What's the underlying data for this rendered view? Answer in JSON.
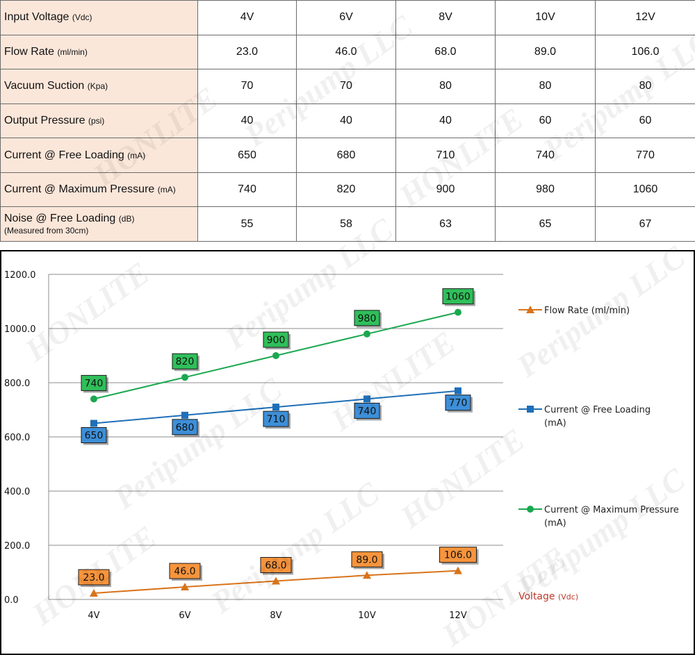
{
  "table": {
    "header": {
      "label": "Input Voltage",
      "unit": "(Vdc)",
      "values": [
        "4V",
        "6V",
        "8V",
        "10V",
        "12V"
      ]
    },
    "rows": [
      {
        "label": "Flow Rate",
        "unit": "(ml/min)",
        "values": [
          "23.0",
          "46.0",
          "68.0",
          "89.0",
          "106.0"
        ]
      },
      {
        "label": "Vacuum Suction",
        "unit": "(Kpa)",
        "values": [
          "70",
          "70",
          "80",
          "80",
          "80"
        ]
      },
      {
        "label": "Output Pressure",
        "unit": "(psi)",
        "values": [
          "40",
          "40",
          "40",
          "60",
          "60"
        ]
      },
      {
        "label": "Current @ Free Loading",
        "unit": "(mA)",
        "values": [
          "650",
          "680",
          "710",
          "740",
          "770"
        ]
      },
      {
        "label": "Current @ Maximum Pressure",
        "unit": "(mA)",
        "values": [
          "740",
          "820",
          "900",
          "980",
          "1060"
        ]
      },
      {
        "label": "Noise @ Free Loading",
        "unit": "(dB)",
        "sub": "(Measured from 30cm)",
        "values": [
          "55",
          "58",
          "63",
          "65",
          "67"
        ]
      }
    ]
  },
  "watermark": {
    "lines": [
      "Peripump LLC",
      "HONLITE"
    ]
  },
  "chart_data": {
    "type": "line",
    "title": "",
    "categories": [
      "4V",
      "6V",
      "8V",
      "10V",
      "12V"
    ],
    "xlabel": "Voltage",
    "xlabel_unit": "(Vdc)",
    "ylabel": "",
    "ylim": [
      0,
      1200
    ],
    "yticks": [
      "0.0",
      "200.0",
      "400.0",
      "600.0",
      "800.0",
      "1000.0",
      "1200.0"
    ],
    "grid": true,
    "legend_position": "right",
    "series": [
      {
        "name": "Flow Rate (ml/min)",
        "marker": "triangle",
        "line_color": "#d9731b",
        "label_fill": "#f7943c",
        "label_position": "above",
        "values": [
          23.0,
          46.0,
          68.0,
          89.0,
          106.0
        ],
        "labels": [
          "23.0",
          "46.0",
          "68.0",
          "89.0",
          "106.0"
        ]
      },
      {
        "name": "Current @ Free Loading (mA)",
        "marker": "square",
        "line_color": "#1f6fb8",
        "label_fill": "#3d8fd8",
        "label_position": "below",
        "values": [
          650,
          680,
          710,
          740,
          770
        ],
        "labels": [
          "650",
          "680",
          "710",
          "740",
          "770"
        ]
      },
      {
        "name": "Current @ Maximum Pressure (mA)",
        "marker": "circle",
        "line_color": "#1aa84f",
        "label_fill": "#2fbf5a",
        "label_position": "above",
        "values": [
          740,
          820,
          900,
          980,
          1060
        ],
        "labels": [
          "740",
          "820",
          "900",
          "980",
          "1060"
        ]
      }
    ]
  }
}
